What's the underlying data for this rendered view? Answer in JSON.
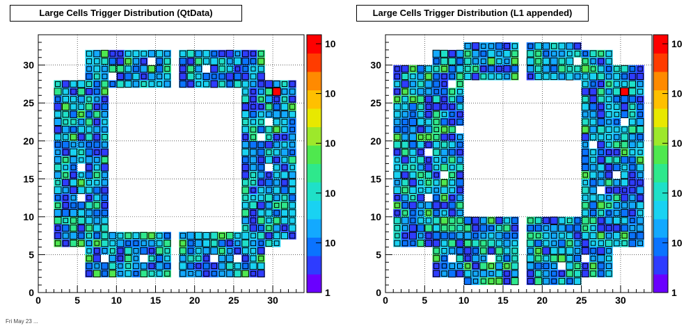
{
  "chart_data": [
    {
      "type": "heatmap",
      "title": "Large Cells Trigger Distribution (QtData)",
      "x_ticks": [
        0,
        5,
        10,
        15,
        20,
        25,
        30
      ],
      "y_ticks": [
        0,
        5,
        10,
        15,
        20,
        25,
        30
      ],
      "xlim": [
        0,
        34
      ],
      "ylim": [
        0,
        34
      ],
      "grid": true,
      "colorbar_labels": [
        "1",
        "10",
        "10",
        "10",
        "10",
        "10"
      ],
      "hot_cell": {
        "x": 30,
        "y": 26
      },
      "layout": "left"
    },
    {
      "type": "heatmap",
      "title": "Large Cells Trigger Distribution (L1 appended)",
      "x_ticks": [
        0,
        5,
        10,
        15,
        20,
        25,
        30
      ],
      "y_ticks": [
        0,
        5,
        10,
        15,
        20,
        25,
        30
      ],
      "xlim": [
        0,
        34
      ],
      "ylim": [
        0,
        34
      ],
      "grid": true,
      "colorbar_labels": [
        "1",
        "10",
        "10",
        "10",
        "10",
        "10"
      ],
      "hot_cell": {
        "x": 30,
        "y": 26
      },
      "layout": "right"
    }
  ],
  "palette": [
    "#6a00ff",
    "#2e3cff",
    "#0a73ff",
    "#13a9ff",
    "#19d2f2",
    "#1fe0c8",
    "#2ee88c",
    "#4fe84e",
    "#9de82b",
    "#e8e800",
    "#ffc000",
    "#ff8a00",
    "#ff3c00",
    "#ff0000"
  ],
  "footer_text": "Fri May 23 ..."
}
